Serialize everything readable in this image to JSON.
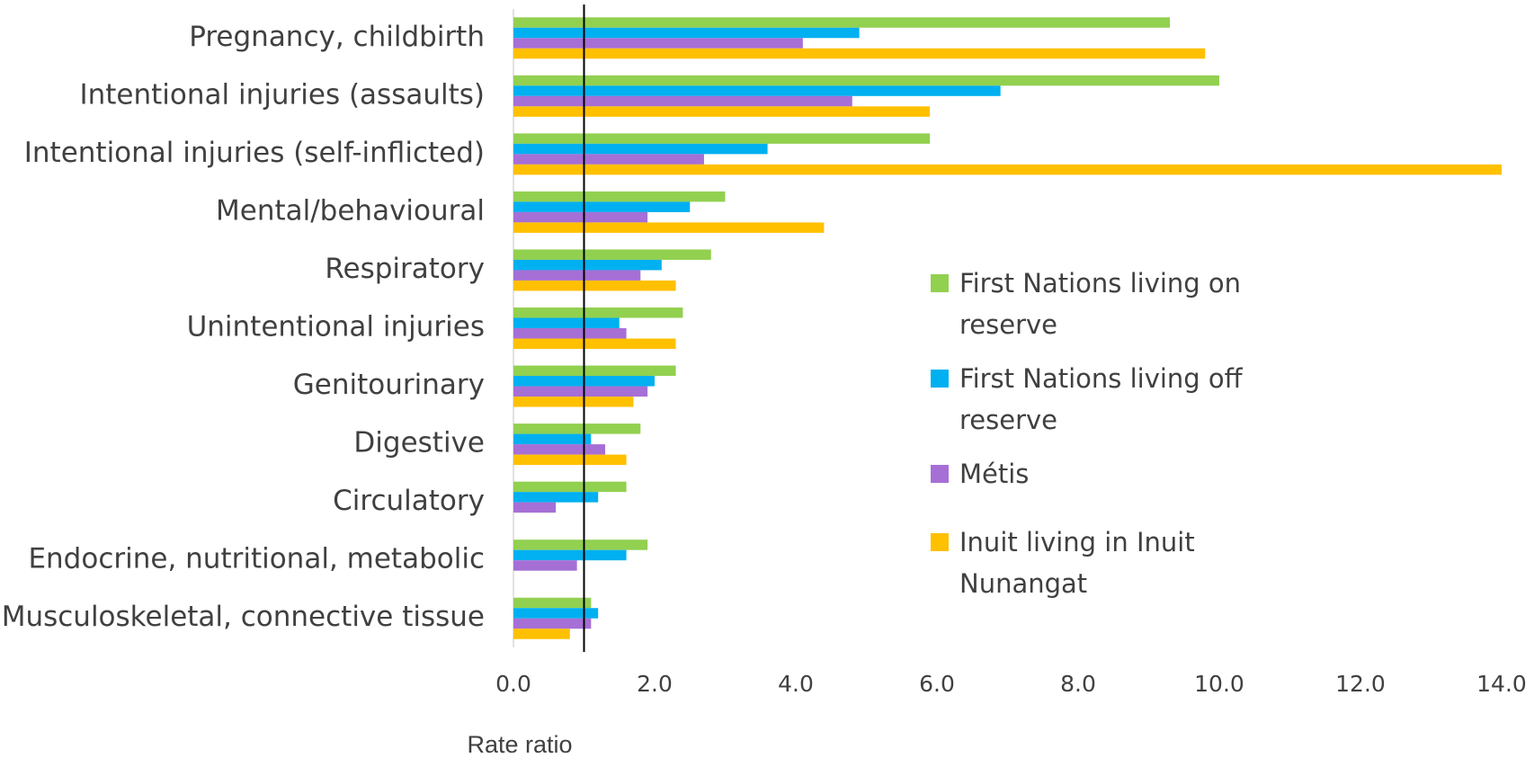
{
  "chart_data": {
    "type": "hbar",
    "x_label": "Rate ratio",
    "categories": [
      "Pregnancy, childbirth",
      "Intentional injuries (assaults)",
      "Intentional injuries (self-inflicted)",
      "Mental/behavioural",
      "Respiratory",
      "Unintentional injuries",
      "Genitourinary",
      "Digestive",
      "Circulatory",
      "Endocrine, nutritional, metabolic",
      "Musculoskeletal, connective tissue"
    ],
    "series": [
      {
        "name": "First Nations living on reserve",
        "color": "#92d050",
        "values": [
          9.3,
          10.0,
          5.9,
          3.0,
          2.8,
          2.4,
          2.3,
          1.8,
          1.6,
          1.9,
          1.1
        ]
      },
      {
        "name": "First Nations living off reserve",
        "color": "#00b0f0",
        "values": [
          4.9,
          6.9,
          3.6,
          2.5,
          2.1,
          1.5,
          2.0,
          1.1,
          1.2,
          1.6,
          1.2
        ]
      },
      {
        "name": "Métis",
        "color": "#a66fd6",
        "values": [
          4.1,
          4.8,
          2.7,
          1.9,
          1.8,
          1.6,
          1.9,
          1.3,
          0.6,
          0.9,
          1.1
        ]
      },
      {
        "name": "Inuit living in Inuit Nunangat",
        "color": "#ffc000",
        "values": [
          9.8,
          5.9,
          14.0,
          4.4,
          2.3,
          2.3,
          1.7,
          1.6,
          null,
          null,
          0.8
        ]
      }
    ],
    "xlim": [
      0,
      14
    ],
    "xticks": [
      {
        "value": 0,
        "label": "0.0"
      },
      {
        "value": 2,
        "label": "2.0"
      },
      {
        "value": 4,
        "label": "4.0"
      },
      {
        "value": 6,
        "label": "6.0"
      },
      {
        "value": 8,
        "label": "8.0"
      },
      {
        "value": 10,
        "label": "10.0"
      },
      {
        "value": 12,
        "label": "12.0"
      },
      {
        "value": 14,
        "label": "14.0"
      }
    ],
    "reference_line": 1.0
  }
}
